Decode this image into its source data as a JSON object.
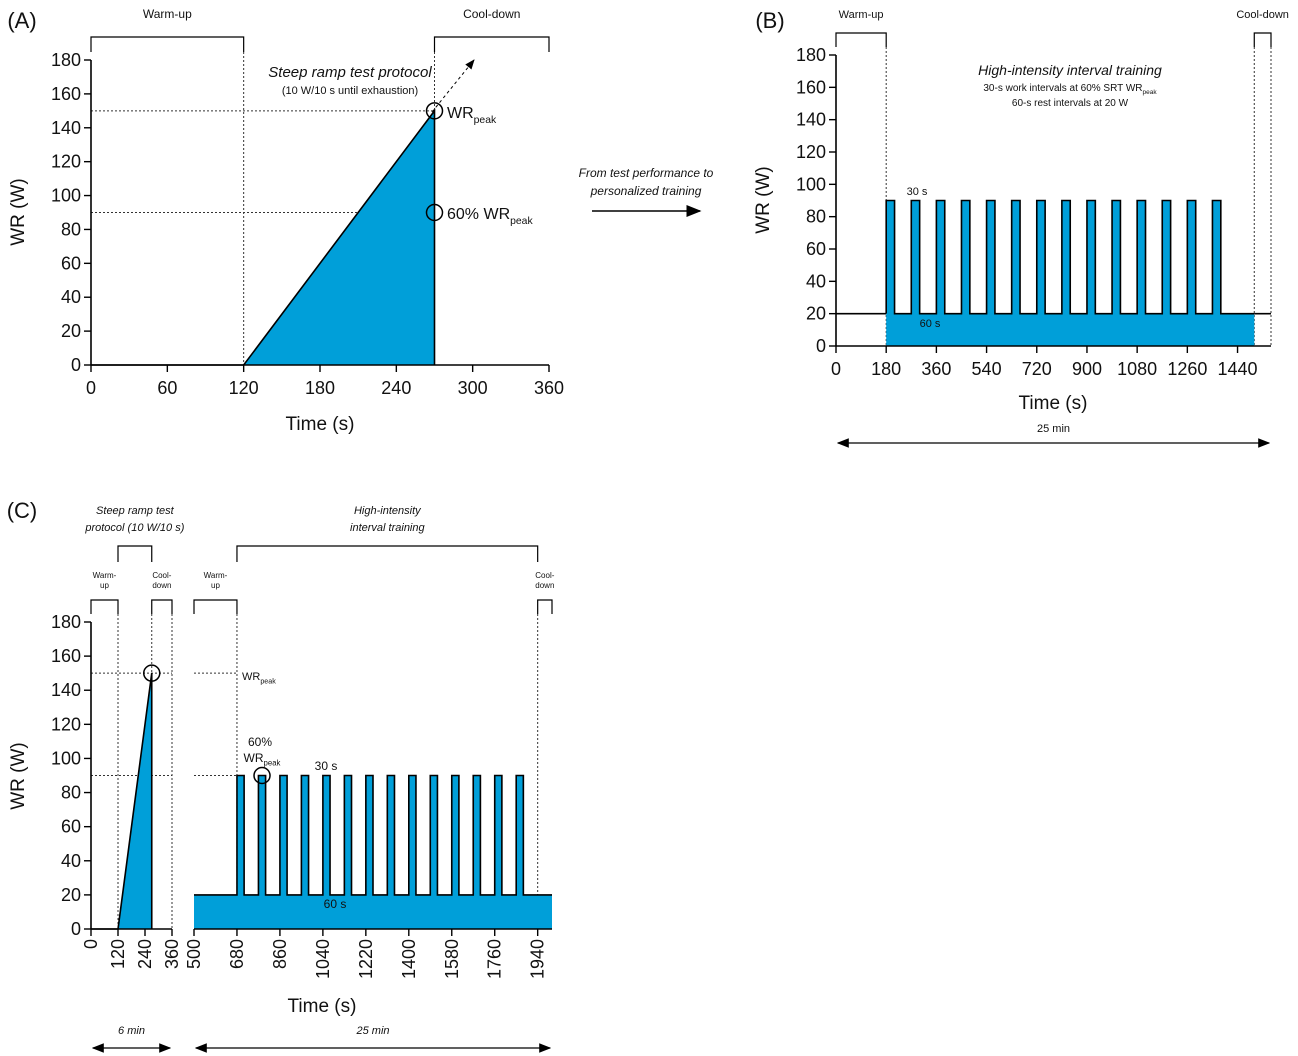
{
  "transition": [
    "From test performance to",
    "personalized training"
  ],
  "chart_data": [
    {
      "type": "area",
      "panel": "(A)",
      "xlabel": "Time (s)",
      "ylabel": "WR (W)",
      "xlim": [
        0,
        360
      ],
      "ylim": [
        0,
        180
      ],
      "xticks": [
        0,
        60,
        120,
        180,
        240,
        300,
        360
      ],
      "yticks": [
        0,
        20,
        40,
        60,
        80,
        100,
        120,
        140,
        160,
        180
      ],
      "series": [
        {
          "color": "#009fd9",
          "fill": true,
          "x": [
            0,
            120,
            270,
            270
          ],
          "values": [
            0,
            0,
            150,
            0
          ]
        }
      ],
      "brackets": [
        {
          "label": [
            "Warm-up"
          ],
          "range": [
            0,
            120
          ]
        },
        {
          "label": [
            "Cool-down"
          ],
          "range": [
            270,
            360
          ]
        }
      ],
      "vlines": [
        120,
        270
      ],
      "hlines": [
        {
          "y": 150,
          "to": 270
        },
        {
          "y": 90,
          "to": 270
        }
      ],
      "markers": [
        {
          "x": 270,
          "y": 150
        },
        {
          "x": 270,
          "y": 90
        }
      ],
      "notes": [
        {
          "text": "Steep ramp test protocol"
        },
        {
          "text": "(10 W/10 s until exhaustion)"
        },
        {
          "text": "WR",
          "sub": "peak"
        },
        {
          "text": "60% WR",
          "sub": "peak"
        }
      ]
    },
    {
      "type": "area",
      "panel": "(B)",
      "xlabel": "Time (s)",
      "ylabel": "WR (W)",
      "span_label": "25 min",
      "xlim": [
        0,
        1560
      ],
      "ylim": [
        0,
        180
      ],
      "xticks": [
        0,
        180,
        360,
        540,
        720,
        900,
        1080,
        1260,
        1440
      ],
      "yticks": [
        0,
        20,
        40,
        60,
        80,
        100,
        120,
        140,
        160,
        180
      ],
      "series": [
        {
          "color": "#009fd9",
          "fill": false,
          "x": [
            0,
            180
          ],
          "values": [
            20,
            20
          ]
        },
        {
          "color": "#009fd9",
          "fill": true,
          "x": [
            180,
            180,
            210,
            210,
            270,
            270,
            300,
            300,
            360,
            360,
            390,
            390,
            450,
            450,
            480,
            480,
            540,
            540,
            570,
            570,
            630,
            630,
            660,
            660,
            720,
            720,
            750,
            750,
            810,
            810,
            840,
            840,
            900,
            900,
            930,
            930,
            990,
            990,
            1020,
            1020,
            1080,
            1080,
            1110,
            1110,
            1170,
            1170,
            1200,
            1200,
            1260,
            1260,
            1290,
            1290,
            1350,
            1350,
            1380,
            1380,
            1500
          ],
          "values": [
            20,
            90,
            90,
            20,
            20,
            90,
            90,
            20,
            20,
            90,
            90,
            20,
            20,
            90,
            90,
            20,
            20,
            90,
            90,
            20,
            20,
            90,
            90,
            20,
            20,
            90,
            90,
            20,
            20,
            90,
            90,
            20,
            20,
            90,
            90,
            20,
            20,
            90,
            90,
            20,
            20,
            90,
            90,
            20,
            20,
            90,
            90,
            20,
            20,
            90,
            90,
            20,
            20,
            90,
            90,
            20,
            20
          ]
        },
        {
          "color": "#009fd9",
          "fill": false,
          "x": [
            1500,
            1560
          ],
          "values": [
            20,
            20
          ]
        }
      ],
      "brackets": [
        {
          "label": [
            "Warm-up"
          ],
          "range": [
            0,
            180
          ]
        },
        {
          "label": [
            "Cool-down"
          ],
          "range": [
            1500,
            1560
          ]
        }
      ],
      "vlines": [
        180,
        1500,
        1560
      ],
      "hlines": [],
      "markers": [],
      "notes": [
        {
          "text": "High-intensity interval training"
        },
        {
          "text": "30-s work intervals at 60% SRT WR",
          "sub": "peak"
        },
        {
          "text": "60-s rest intervals at 20 W"
        },
        {
          "text": "30 s"
        },
        {
          "text": "60 s"
        }
      ]
    },
    {
      "type": "area",
      "panel": "(C)",
      "ylabel": "WR (W)",
      "span_label": "6 min",
      "xlim": [
        0,
        360
      ],
      "ylim": [
        0,
        180
      ],
      "xticks": [
        0,
        120,
        240,
        360
      ],
      "yticks": [
        0,
        20,
        40,
        60,
        80,
        100,
        120,
        140,
        160,
        180
      ],
      "series": [
        {
          "color": "#009fd9",
          "fill": true,
          "x": [
            0,
            120,
            270,
            270
          ],
          "values": [
            0,
            0,
            150,
            0
          ]
        }
      ],
      "brackets": [
        {
          "label": [
            "Warm-",
            "up"
          ],
          "range": [
            0,
            120
          ]
        },
        {
          "label": [
            "Cool-",
            "down"
          ],
          "range": [
            270,
            360
          ]
        }
      ],
      "outer_brackets": [
        {
          "label": [
            "Steep ramp test",
            "protocol (10 W/10 s)"
          ],
          "range": [
            120,
            270
          ]
        }
      ],
      "vlines": [
        120,
        270,
        360
      ],
      "hlines": [
        {
          "y": 150,
          "to": 360
        },
        {
          "y": 90,
          "to": 360
        }
      ],
      "markers": [
        {
          "x": 270,
          "y": 150
        }
      ],
      "notes": []
    },
    {
      "type": "area",
      "xlabel": "Time (s)",
      "span_label": "25 min",
      "xlim": [
        500,
        2000
      ],
      "ylim": [
        0,
        180
      ],
      "xticks": [
        500,
        680,
        860,
        1040,
        1220,
        1400,
        1580,
        1760,
        1940
      ],
      "series": [
        {
          "color": "#009fd9",
          "fill": true,
          "x": [
            500,
            680,
            680,
            710,
            710,
            770,
            770,
            800,
            800,
            860,
            860,
            890,
            890,
            950,
            950,
            980,
            980,
            1040,
            1040,
            1070,
            1070,
            1130,
            1130,
            1160,
            1160,
            1220,
            1220,
            1250,
            1250,
            1310,
            1310,
            1340,
            1340,
            1400,
            1400,
            1430,
            1430,
            1490,
            1490,
            1520,
            1520,
            1580,
            1580,
            1610,
            1610,
            1670,
            1670,
            1700,
            1700,
            1760,
            1760,
            1790,
            1790,
            1850,
            1850,
            1880,
            1880,
            2000
          ],
          "values": [
            20,
            20,
            90,
            90,
            20,
            20,
            90,
            90,
            20,
            20,
            90,
            90,
            20,
            20,
            90,
            90,
            20,
            20,
            90,
            90,
            20,
            20,
            90,
            90,
            20,
            20,
            90,
            90,
            20,
            20,
            90,
            90,
            20,
            20,
            90,
            90,
            20,
            20,
            90,
            90,
            20,
            20,
            90,
            90,
            20,
            20,
            90,
            90,
            20,
            20,
            90,
            90,
            20,
            20,
            90,
            90,
            20,
            20
          ]
        }
      ],
      "brackets": [
        {
          "label": [
            "Warm-",
            "up"
          ],
          "range": [
            500,
            680
          ]
        },
        {
          "label": [
            "Cool-",
            "down"
          ],
          "range": [
            1940,
            2000
          ]
        }
      ],
      "outer_brackets": [
        {
          "label": [
            "High-intensity",
            "interval training"
          ],
          "range": [
            680,
            1940
          ]
        }
      ],
      "vlines": [
        680,
        1940
      ],
      "hlines": [
        {
          "y": 150,
          "to": 680
        },
        {
          "y": 90,
          "to": 680
        }
      ],
      "markers": [
        {
          "x": 785,
          "y": 90
        }
      ],
      "notes": [
        {
          "text": "WR",
          "sub": "peak"
        },
        {
          "text": "60%"
        },
        {
          "text": "WR",
          "sub": "peak"
        },
        {
          "text": "30 s"
        },
        {
          "text": "60 s"
        }
      ]
    }
  ]
}
